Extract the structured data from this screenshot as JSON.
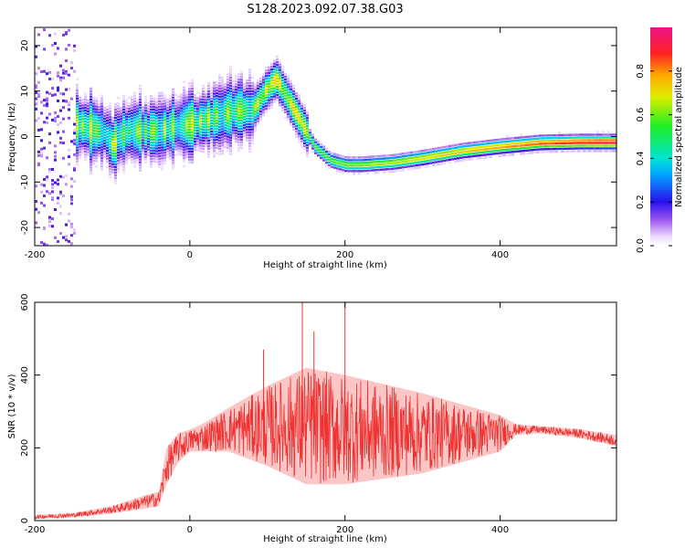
{
  "title": "S128.2023.092.07.38.G03",
  "chart_data": [
    {
      "type": "heatmap",
      "xlabel": "Height of straight line (km)",
      "ylabel": "Frequency (Hz)",
      "xlim": [
        -200,
        550
      ],
      "ylim": [
        -24,
        24
      ],
      "xticks": [
        "-200",
        "0",
        "200",
        "400"
      ],
      "yticks": [
        "-20",
        "-10",
        "0",
        "10",
        "20"
      ],
      "colorbar": {
        "label": "Normalized spectral amplitude",
        "range": [
          0,
          1
        ],
        "ticks": [
          "0.0",
          "0.2",
          "0.4",
          "0.6",
          "0.8"
        ]
      },
      "ridge": {
        "x": [
          -150,
          -130,
          -110,
          -100,
          -95,
          -80,
          -60,
          -40,
          -20,
          0,
          20,
          40,
          60,
          80,
          95,
          110,
          120,
          140,
          160,
          180,
          200,
          220,
          260,
          300,
          350,
          400,
          450,
          500,
          550
        ],
        "y": [
          3,
          2,
          1,
          -2,
          0,
          1.5,
          1.5,
          1.5,
          2.5,
          3,
          4,
          5,
          6,
          6,
          10,
          13,
          10,
          4,
          -2,
          -5,
          -6,
          -6,
          -5.5,
          -4.5,
          -3,
          -2,
          -1.2,
          -1,
          -1
        ]
      }
    },
    {
      "type": "line",
      "xlabel": "Height of straight line (km)",
      "ylabel": "SNR (10 * v/v)",
      "xlim": [
        -200,
        550
      ],
      "ylim": [
        0,
        600
      ],
      "xticks": [
        "-200",
        "0",
        "200",
        "400"
      ],
      "yticks": [
        "0",
        "200",
        "400",
        "600"
      ],
      "color": "#ee3333",
      "envelope": {
        "x": [
          -200,
          -150,
          -100,
          -60,
          -40,
          -30,
          -15,
          0,
          20,
          50,
          100,
          150,
          200,
          250,
          300,
          350,
          400,
          420,
          450,
          500,
          550
        ],
        "mean": [
          10,
          15,
          30,
          50,
          60,
          150,
          200,
          220,
          230,
          250,
          260,
          260,
          250,
          245,
          240,
          240,
          240,
          250,
          250,
          240,
          220
        ],
        "halfwidth": [
          5,
          6,
          10,
          18,
          20,
          50,
          40,
          30,
          40,
          60,
          110,
          160,
          150,
          130,
          110,
          80,
          50,
          15,
          10,
          12,
          15
        ]
      },
      "peaks": {
        "x": [
          95,
          145,
          160,
          200
        ],
        "y": [
          470,
          600,
          520,
          600
        ]
      }
    }
  ]
}
